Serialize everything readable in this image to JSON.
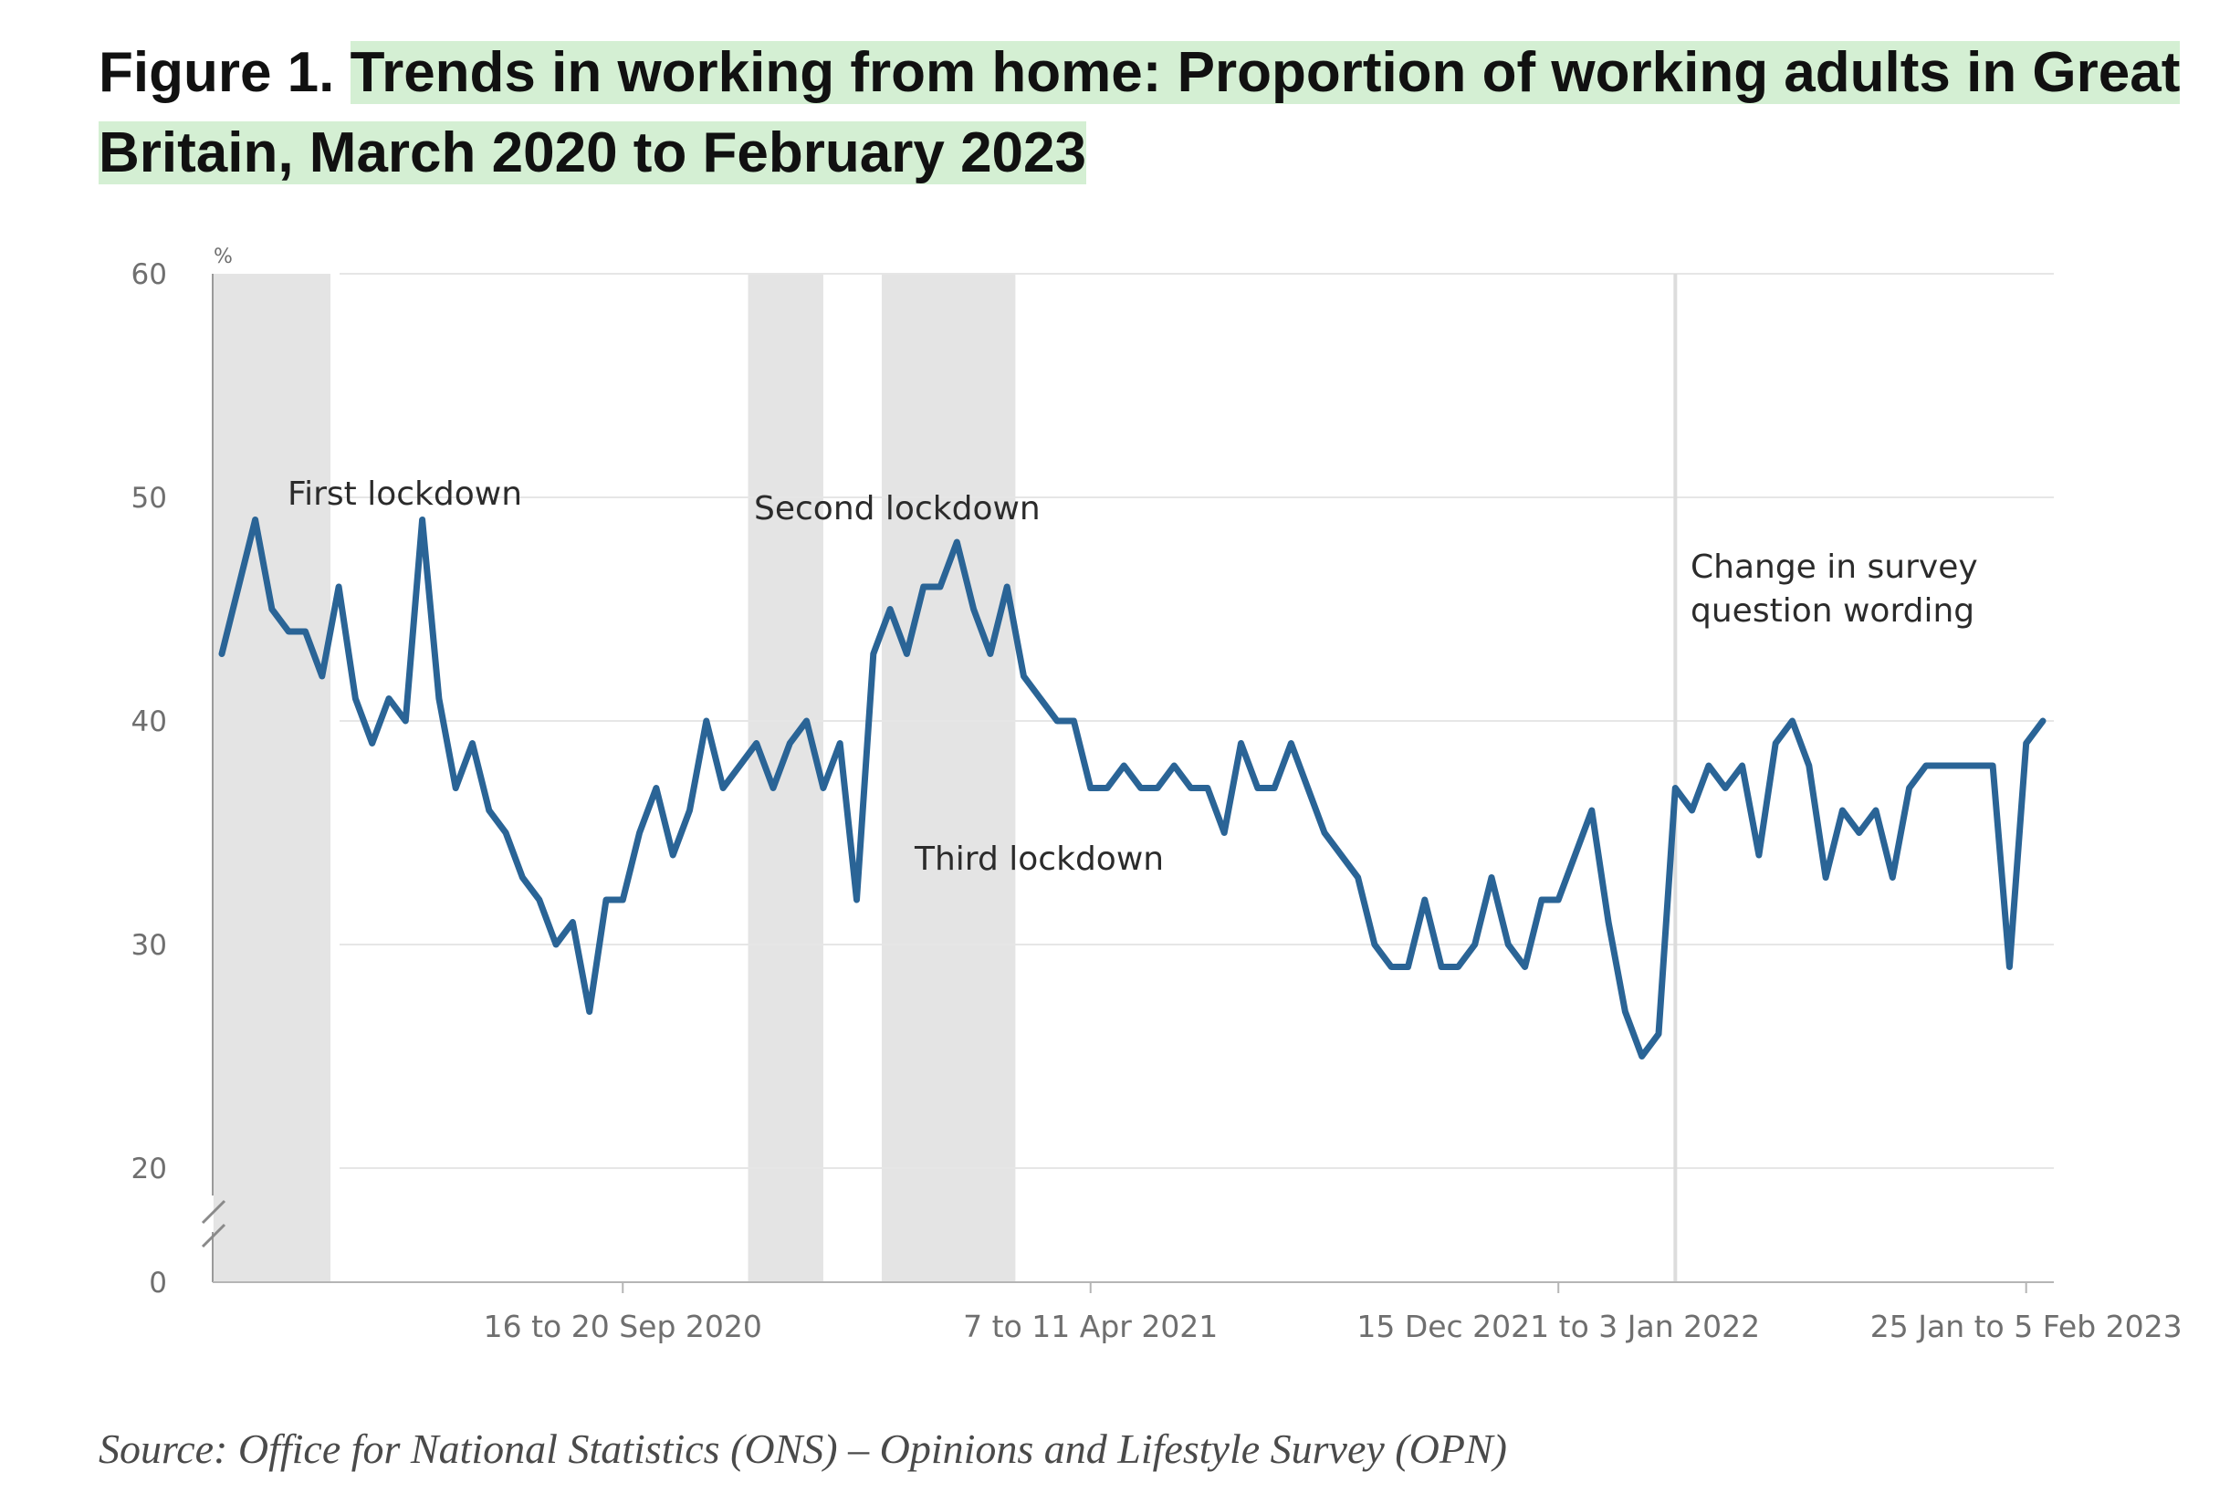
{
  "figure": {
    "label": "Figure 1.",
    "title": "Trends in working from home: Proportion of working adults in Great Britain, March 2020 to February 2023",
    "source": "Source: Office for National Statistics (ONS) – Opinions and Lifestyle Survey (OPN)"
  },
  "colors": {
    "line": "#2a6496",
    "shade": "#e4e4e4",
    "grid": "#e6e6e6",
    "highlight": "#d4efd3"
  },
  "chart_data": {
    "type": "line",
    "title": "Trends in working from home: Proportion of working adults in Great Britain, March 2020 to February 2023",
    "ylabel": "%",
    "xlabel": "",
    "ylim": [
      0,
      60
    ],
    "y_axis_break": [
      0,
      20
    ],
    "y_ticks": [
      "60",
      "50",
      "40",
      "30",
      "20",
      "0"
    ],
    "x_tick_labels": [
      {
        "index": 24,
        "label": "16 to 20 Sep 2020"
      },
      {
        "index": 52,
        "label": "7 to 11 Apr 2021"
      },
      {
        "index": 80,
        "label": "15 Dec 2021 to 3 Jan 2022"
      },
      {
        "index": 108,
        "label": "25 Jan to 5 Feb 2023"
      }
    ],
    "grid": true,
    "legend": "none",
    "series": [
      {
        "values": [
          43,
          46,
          49,
          45,
          44,
          44,
          42,
          46,
          41,
          39,
          41,
          40,
          49,
          41,
          37,
          39,
          36,
          35,
          33,
          32,
          30,
          31,
          27,
          32,
          32,
          35,
          37,
          34,
          36,
          40,
          37,
          38,
          39,
          37,
          39,
          40,
          37,
          39,
          32,
          43,
          45,
          43,
          46,
          46,
          48,
          45,
          43,
          46,
          42,
          41,
          40,
          40,
          37,
          37,
          38,
          37,
          37,
          38,
          37,
          37,
          35,
          39,
          37,
          37,
          39,
          37,
          35,
          34,
          33,
          30,
          29,
          29,
          32,
          29,
          29,
          30,
          33,
          30,
          29,
          32,
          32,
          34,
          36,
          31,
          27,
          25,
          26,
          37,
          36,
          38,
          37,
          38,
          34,
          39,
          40,
          38,
          33,
          36,
          35,
          36,
          33,
          37,
          38,
          38,
          38,
          38,
          38,
          29,
          39,
          40
        ]
      }
    ],
    "shaded_periods": [
      {
        "name": "First lockdown",
        "start": -0.5,
        "end": 6.5
      },
      {
        "name": "Second lockdown",
        "start": 31.5,
        "end": 36
      },
      {
        "name": "Third lockdown",
        "start": 39.5,
        "end": 47.5
      }
    ],
    "vertical_marker": {
      "index": 87,
      "label_lines": [
        "Change in survey",
        "question wording"
      ]
    },
    "annotations": [
      "First lockdown",
      "Second lockdown",
      "Third lockdown"
    ]
  }
}
